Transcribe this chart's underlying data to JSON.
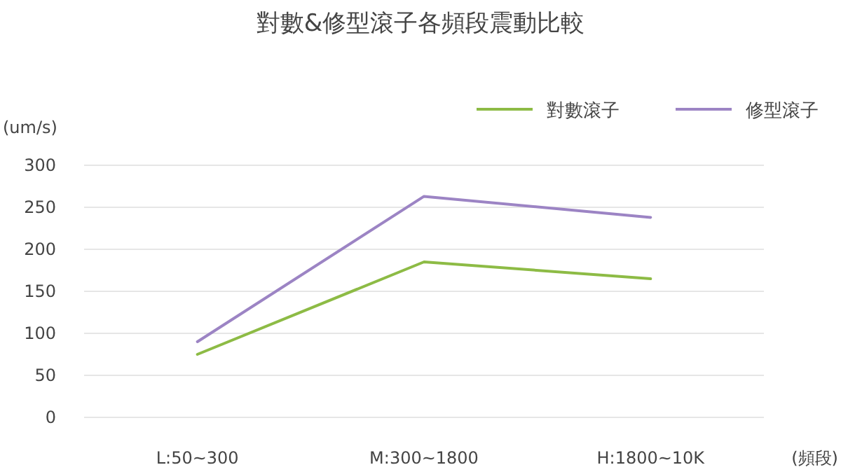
{
  "chart_data": {
    "type": "line",
    "title": "對數&修型滾子各頻段震動比較",
    "xlabel": "(頻段)",
    "ylabel": "(um/s)",
    "categories": [
      "L:50~300",
      "M:300~1800",
      "H:1800~10K"
    ],
    "series": [
      {
        "name": "對數滾子",
        "color": "#8dbb45",
        "values": [
          75,
          185,
          165
        ]
      },
      {
        "name": "修型滾子",
        "color": "#9c84c4",
        "values": [
          90,
          263,
          238
        ]
      }
    ],
    "ylim": [
      0,
      300
    ],
    "yticks": [
      0,
      50,
      100,
      150,
      200,
      250,
      300
    ],
    "grid": "y",
    "legend": "top right"
  }
}
